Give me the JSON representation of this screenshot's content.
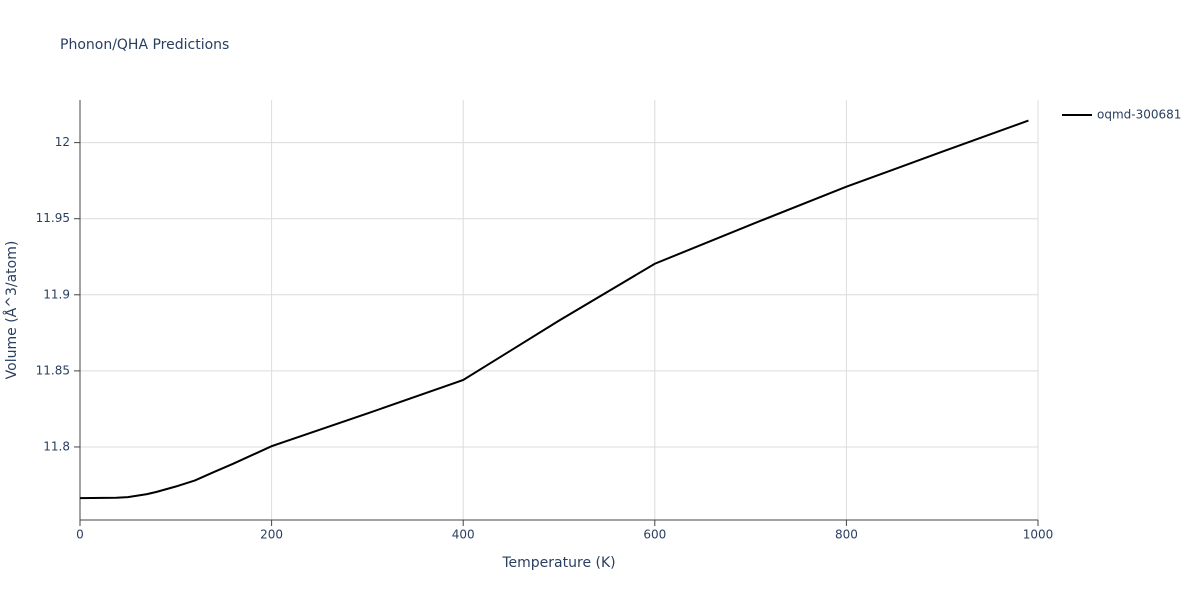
{
  "chart_data": {
    "type": "line",
    "title": "Phonon/QHA Predictions",
    "x_label": "Temperature (K)",
    "y_label": "Volume (Å^3/atom)",
    "x": [
      0,
      38,
      50,
      70,
      80,
      100,
      120,
      140,
      160,
      200,
      300,
      400,
      500,
      600,
      700,
      800,
      900,
      990
    ],
    "series": [
      {
        "name": "oqmd-300681",
        "color": "#000000",
        "values": [
          11.7664,
          11.7666,
          11.767,
          11.769,
          11.7705,
          11.774,
          11.778,
          11.7836,
          11.789,
          11.8005,
          11.822,
          11.844,
          11.883,
          11.9204,
          11.946,
          11.971,
          11.994,
          12.0145
        ]
      }
    ],
    "xlim": [
      0,
      1000
    ],
    "xticks": [
      0,
      200,
      400,
      600,
      800,
      1000
    ],
    "ylim": [
      11.752,
      12.028
    ],
    "yticks": [
      11.8,
      11.85,
      11.9,
      11.95,
      12
    ],
    "grid": true,
    "legend": "right"
  }
}
